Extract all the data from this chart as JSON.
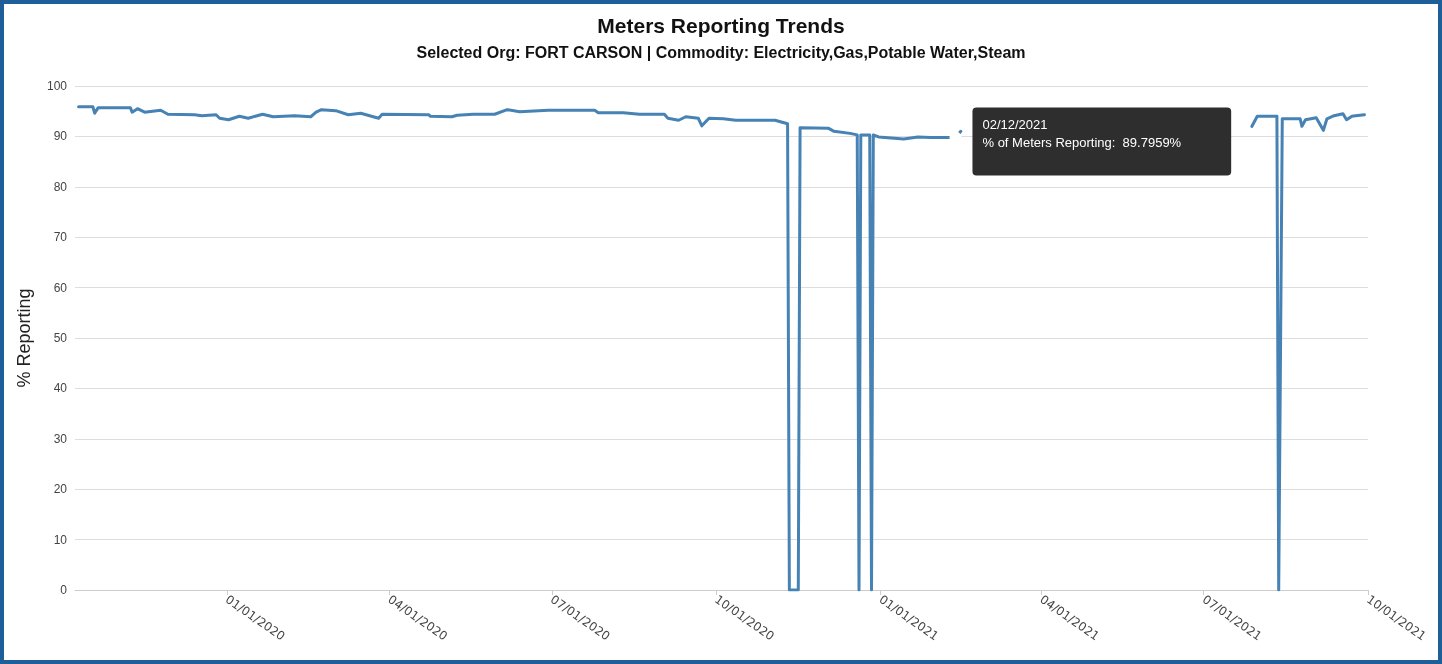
{
  "chart_data": {
    "type": "line",
    "title": "Meters Reporting Trends",
    "subtitle": "Selected Org: FORT CARSON | Commodity: Electricity,Gas,Potable Water,Steam",
    "ylabel": "% Reporting",
    "x": [
      "2019-10-10",
      "2019-10-18",
      "2019-10-19",
      "2019-10-21",
      "2019-11-08",
      "2019-11-09",
      "2019-11-12",
      "2019-11-16",
      "2019-11-25",
      "2019-11-29",
      "2019-12-14",
      "2019-12-18",
      "2019-12-26",
      "2019-12-28",
      "2020-01-02",
      "2020-01-08",
      "2020-01-13",
      "2020-01-21",
      "2020-01-27",
      "2020-02-08",
      "2020-02-17",
      "2020-02-20",
      "2020-02-23",
      "2020-03-02",
      "2020-03-09",
      "2020-03-16",
      "2020-03-26",
      "2020-03-28",
      "2020-04-23",
      "2020-04-24",
      "2020-05-06",
      "2020-05-09",
      "2020-05-18",
      "2020-05-30",
      "2020-06-06",
      "2020-06-13",
      "2020-06-29",
      "2020-07-25",
      "2020-07-27",
      "2020-08-10",
      "2020-08-19",
      "2020-09-02",
      "2020-09-04",
      "2020-09-10",
      "2020-09-14",
      "2020-09-21",
      "2020-09-23",
      "2020-09-27",
      "2020-10-05",
      "2020-10-12",
      "2020-11-03",
      "2020-11-10",
      "2020-11-11",
      "2020-11-16",
      "2020-11-17",
      "2020-12-03",
      "2020-12-06",
      "2020-12-15",
      "2020-12-19",
      "2020-12-20",
      "2020-12-21",
      "2020-12-26",
      "2020-12-27",
      "2020-12-28",
      "2020-12-31",
      "2021-01-14",
      "2021-01-22",
      "2021-01-29",
      "2021-02-12",
      "2021-02-15",
      "2021-03-09",
      "2021-04-06",
      "2021-05-04",
      "2021-06-01",
      "2021-07-01",
      "2021-07-03",
      "2021-07-06",
      "2021-07-28",
      "2021-07-31",
      "2021-08-11",
      "2021-08-12",
      "2021-08-14",
      "2021-08-24",
      "2021-08-25",
      "2021-08-27",
      "2021-09-02",
      "2021-09-06",
      "2021-09-08",
      "2021-09-12",
      "2021-09-17",
      "2021-09-19",
      "2021-09-22",
      "2021-09-24",
      "2021-09-29"
    ],
    "series": [
      {
        "color": "#4682b4",
        "values": [
          95.9,
          95.9,
          94.6,
          95.7,
          95.7,
          94.8,
          95.5,
          94.8,
          95.2,
          94.4,
          94.3,
          94.1,
          94.3,
          93.6,
          93.3,
          94.0,
          93.6,
          94.4,
          93.9,
          94.1,
          93.9,
          94.8,
          95.3,
          95.1,
          94.3,
          94.6,
          93.6,
          94.4,
          94.3,
          94.0,
          93.9,
          94.2,
          94.4,
          94.4,
          95.3,
          94.9,
          95.2,
          95.2,
          94.7,
          94.7,
          94.4,
          94.4,
          93.6,
          93.2,
          93.9,
          93.6,
          92.1,
          93.6,
          93.5,
          93.2,
          93.2,
          92.5,
          0,
          0,
          91.7,
          91.6,
          91.0,
          90.6,
          90.3,
          0,
          90.3,
          90.3,
          0,
          90.3,
          89.9,
          89.5,
          89.9,
          89.8,
          89.8,
          91.0,
          null,
          null,
          null,
          null,
          null,
          null,
          null,
          92.0,
          94.0,
          94.0,
          0,
          93.5,
          93.5,
          92.0,
          93.3,
          93.7,
          91.2,
          93.5,
          94.1,
          94.5,
          93.3,
          94.0,
          94.1,
          94.3
        ]
      }
    ],
    "annotations": [
      {
        "text": "02/12/2021\n% of Meters Reporting:  89.7959%",
        "x": "2021-02-12",
        "y": 89.7959
      }
    ],
    "xlim": [
      "2019-10-08",
      "2021-10-01"
    ],
    "xticks": [
      {
        "value": "2020-01-01",
        "label": "01/01/2020"
      },
      {
        "value": "2020-04-01",
        "label": "04/01/2020"
      },
      {
        "value": "2020-07-01",
        "label": "07/01/2020"
      },
      {
        "value": "2020-10-01",
        "label": "10/01/2020"
      },
      {
        "value": "2021-01-01",
        "label": "01/01/2021"
      },
      {
        "value": "2021-04-01",
        "label": "04/01/2021"
      },
      {
        "value": "2021-07-01",
        "label": "07/01/2021"
      },
      {
        "value": "2021-10-01",
        "label": "10/01/2021"
      }
    ],
    "ylim": [
      0,
      100
    ],
    "yticks": [
      0,
      10,
      20,
      30,
      40,
      50,
      60,
      70,
      80,
      90,
      100
    ],
    "grid": "y",
    "marker": "none",
    "line_style": "solid"
  }
}
